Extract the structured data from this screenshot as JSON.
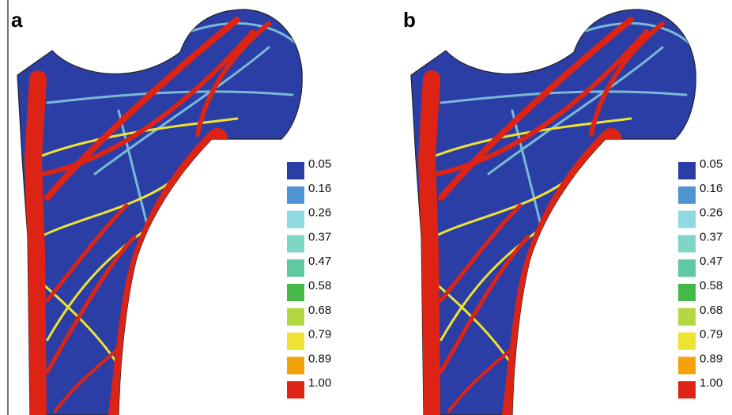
{
  "panels": [
    {
      "label": "a",
      "legend": [
        {
          "value": "0.05",
          "color": "#2b3ea6"
        },
        {
          "value": "0.16",
          "color": "#4f93d2"
        },
        {
          "value": "0.26",
          "color": "#8fd9e3"
        },
        {
          "value": "0.37",
          "color": "#7ed6c6"
        },
        {
          "value": "0.47",
          "color": "#5fc9a2"
        },
        {
          "value": "0.58",
          "color": "#44b94a"
        },
        {
          "value": "0.68",
          "color": "#b3d843"
        },
        {
          "value": "0.79",
          "color": "#efe232"
        },
        {
          "value": "0.89",
          "color": "#f4a20a"
        },
        {
          "value": "1.00",
          "color": "#dd2414"
        }
      ]
    },
    {
      "label": "b",
      "legend": [
        {
          "value": "0.05",
          "color": "#2b3ea6"
        },
        {
          "value": "0.16",
          "color": "#4f93d2"
        },
        {
          "value": "0.26",
          "color": "#8fd9e3"
        },
        {
          "value": "0.37",
          "color": "#7ed6c6"
        },
        {
          "value": "0.47",
          "color": "#5fc9a2"
        },
        {
          "value": "0.58",
          "color": "#44b94a"
        },
        {
          "value": "0.68",
          "color": "#b3d843"
        },
        {
          "value": "0.79",
          "color": "#efe232"
        },
        {
          "value": "0.89",
          "color": "#f4a20a"
        },
        {
          "value": "1.00",
          "color": "#dd2414"
        }
      ]
    }
  ]
}
